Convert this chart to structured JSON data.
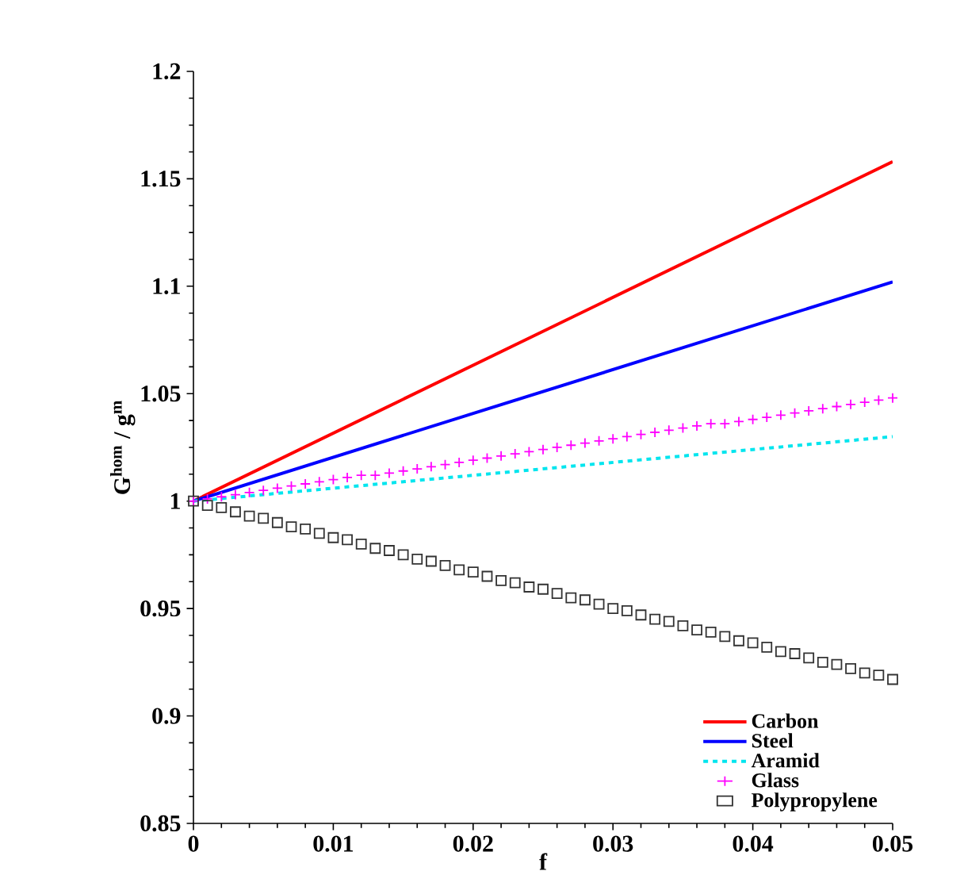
{
  "chart_data": {
    "type": "line",
    "xlabel": "f",
    "ylabel": "G$^{hom}$ / g$^{m}$",
    "xlim": [
      0,
      0.05
    ],
    "ylim": [
      0.85,
      1.2
    ],
    "xticks": [
      0,
      0.01,
      0.02,
      0.03,
      0.04,
      0.05
    ],
    "yticks": [
      0.85,
      0.9,
      0.95,
      1,
      1.05,
      1.1,
      1.15,
      1.2
    ],
    "grid": false,
    "legend": "bottom right",
    "series": [
      {
        "name": "Carbon",
        "color": "#ff0000",
        "marker": "none",
        "line_style": "solid",
        "x": [
          0,
          0.05
        ],
        "values": [
          1,
          1.158
        ]
      },
      {
        "name": "Steel",
        "color": "#0000ff",
        "marker": "none",
        "line_style": "solid",
        "x": [
          0,
          0.05
        ],
        "values": [
          1,
          1.102
        ]
      },
      {
        "name": "Aramid",
        "color": "#00e5ee",
        "marker": "none",
        "line_style": "dashed",
        "x": [
          0,
          0.05
        ],
        "values": [
          1,
          1.03
        ]
      },
      {
        "name": "Glass",
        "color": "#ff00ff",
        "type": "scatter",
        "marker": "cross",
        "x": [
          0,
          0.001,
          0.002,
          0.003,
          0.004,
          0.005,
          0.006,
          0.007,
          0.008,
          0.009,
          0.01,
          0.011,
          0.012,
          0.013,
          0.014,
          0.015,
          0.016,
          0.017,
          0.018,
          0.019,
          0.02,
          0.021,
          0.022,
          0.023,
          0.024,
          0.025,
          0.026,
          0.027,
          0.028,
          0.029,
          0.03,
          0.031,
          0.032,
          0.033,
          0.034,
          0.035,
          0.036,
          0.037,
          0.038,
          0.039,
          0.04,
          0.041,
          0.042,
          0.043,
          0.044,
          0.045,
          0.046,
          0.047,
          0.048,
          0.049,
          0.05
        ],
        "values": [
          1.0,
          1.001,
          1.002,
          1.003,
          1.004,
          1.005,
          1.006,
          1.007,
          1.008,
          1.009,
          1.01,
          1.011,
          1.012,
          1.012,
          1.013,
          1.014,
          1.015,
          1.016,
          1.017,
          1.018,
          1.019,
          1.02,
          1.021,
          1.022,
          1.023,
          1.024,
          1.025,
          1.026,
          1.027,
          1.028,
          1.029,
          1.03,
          1.031,
          1.032,
          1.033,
          1.034,
          1.035,
          1.036,
          1.036,
          1.037,
          1.038,
          1.039,
          1.04,
          1.041,
          1.042,
          1.043,
          1.044,
          1.045,
          1.046,
          1.047,
          1.048
        ]
      },
      {
        "name": "Polypropylene",
        "color": "#333333",
        "type": "scatter",
        "marker": "square",
        "x": [
          0,
          0.001,
          0.002,
          0.003,
          0.004,
          0.005,
          0.006,
          0.007,
          0.008,
          0.009,
          0.01,
          0.011,
          0.012,
          0.013,
          0.014,
          0.015,
          0.016,
          0.017,
          0.018,
          0.019,
          0.02,
          0.021,
          0.022,
          0.023,
          0.024,
          0.025,
          0.026,
          0.027,
          0.028,
          0.029,
          0.03,
          0.031,
          0.032,
          0.033,
          0.034,
          0.035,
          0.036,
          0.037,
          0.038,
          0.039,
          0.04,
          0.041,
          0.042,
          0.043,
          0.044,
          0.045,
          0.046,
          0.047,
          0.048,
          0.049,
          0.05
        ],
        "values": [
          1.0,
          0.998,
          0.997,
          0.995,
          0.993,
          0.992,
          0.99,
          0.988,
          0.987,
          0.985,
          0.983,
          0.982,
          0.98,
          0.978,
          0.977,
          0.975,
          0.973,
          0.972,
          0.97,
          0.968,
          0.967,
          0.965,
          0.963,
          0.962,
          0.96,
          0.959,
          0.957,
          0.955,
          0.954,
          0.952,
          0.95,
          0.949,
          0.947,
          0.945,
          0.944,
          0.942,
          0.94,
          0.939,
          0.937,
          0.935,
          0.934,
          0.932,
          0.93,
          0.929,
          0.927,
          0.925,
          0.924,
          0.922,
          0.92,
          0.919,
          0.917
        ]
      }
    ]
  }
}
